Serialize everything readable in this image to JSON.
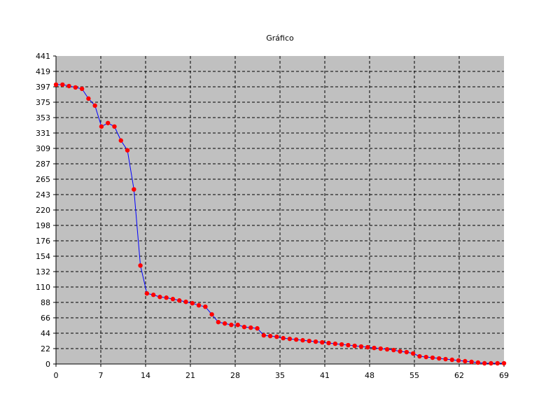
{
  "chart_data": {
    "type": "line",
    "title": "Gráfico",
    "xlabel": "",
    "ylabel": "",
    "xlim": [
      0,
      69
    ],
    "ylim": [
      0,
      441
    ],
    "x_ticks": [
      "0",
      "7",
      "14",
      "21",
      "28",
      "35",
      "41",
      "48",
      "55",
      "62",
      "69"
    ],
    "y_ticks": [
      "0",
      "22",
      "44",
      "66",
      "88",
      "110",
      "132",
      "154",
      "176",
      "198",
      "220",
      "243",
      "265",
      "287",
      "309",
      "331",
      "353",
      "375",
      "397",
      "419",
      "441"
    ],
    "grid": true,
    "background": "#c0c0c0",
    "line_color": "#0000ff",
    "marker_color": "#ff0000",
    "series": [
      {
        "x": [
          0,
          1,
          2,
          3,
          4,
          5,
          6,
          7,
          8,
          9,
          10,
          11,
          12,
          13,
          14,
          15,
          16,
          17,
          18,
          19,
          20,
          21,
          22,
          23,
          24,
          25,
          26,
          27,
          28,
          29,
          30,
          31,
          32,
          33,
          34,
          35,
          36,
          37,
          38,
          39,
          40,
          41,
          42,
          43,
          44,
          45,
          46,
          47,
          48,
          49,
          50,
          51,
          52,
          53,
          54,
          55,
          56,
          57,
          58,
          59,
          60,
          61,
          62,
          63,
          64,
          65,
          66,
          67,
          68,
          69
        ],
        "values": [
          400,
          400,
          398,
          396,
          394,
          380,
          370,
          340,
          345,
          340,
          320,
          306,
          250,
          141,
          101,
          99,
          96,
          95,
          93,
          91,
          89,
          87,
          84,
          82,
          71,
          60,
          58,
          56,
          56,
          53,
          52,
          51,
          41,
          40,
          39,
          37,
          36,
          35,
          34,
          33,
          32,
          31,
          30,
          29,
          28,
          27,
          26,
          25,
          24,
          23,
          22,
          21,
          20,
          18,
          17,
          15,
          11,
          10,
          9,
          8,
          7,
          6,
          5,
          4,
          3,
          2,
          1,
          1,
          1,
          1
        ]
      }
    ]
  }
}
